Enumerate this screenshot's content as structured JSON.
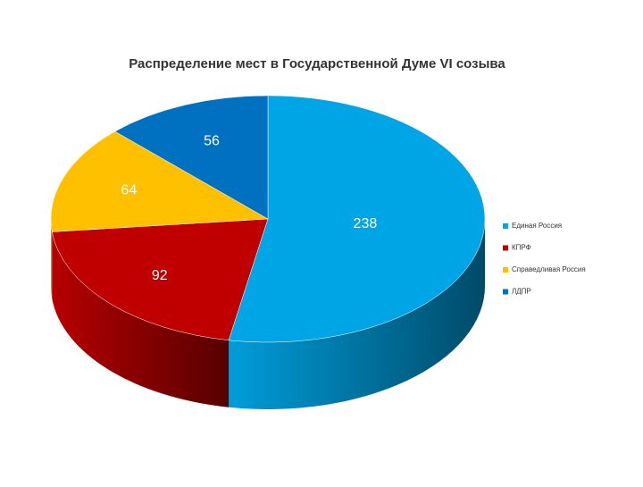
{
  "chart_data": {
    "type": "pie3d",
    "title": "Распределение мест в Государственной Думе VI созыва",
    "categories": [
      "Единая Россия",
      "КПРФ",
      "Справедливая Россия",
      "ЛДПР"
    ],
    "values": [
      238,
      92,
      64,
      56
    ],
    "colors": [
      "#00a5e6",
      "#c00000",
      "#ffc000",
      "#0070c0"
    ],
    "legend": "right"
  }
}
